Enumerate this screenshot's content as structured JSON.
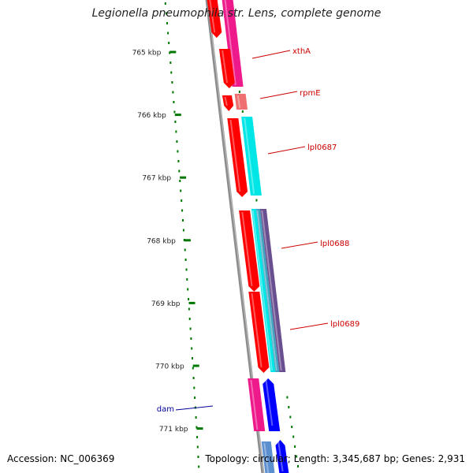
{
  "title": "Legionella pneumophila str. Lens, complete genome",
  "footer": {
    "accession": "Accession: NC_006369",
    "topology": "Topology: circular; Length: 3,345,687 bp; Genes: 2,931"
  },
  "axis_unit": "kbp",
  "ticks": [
    {
      "position_kbp": 765,
      "label": "765 kbp"
    },
    {
      "position_kbp": 766,
      "label": "766 kbp"
    },
    {
      "position_kbp": 767,
      "label": "767 kbp"
    },
    {
      "position_kbp": 768,
      "label": "768 kbp"
    },
    {
      "position_kbp": 769,
      "label": "769 kbp"
    },
    {
      "position_kbp": 770,
      "label": "770 kbp"
    },
    {
      "position_kbp": 771,
      "label": "771 kbp"
    }
  ],
  "gene_labels": [
    {
      "text": "xthA",
      "color": "#cc0000"
    },
    {
      "text": "rpmE",
      "color": "#cc0000"
    },
    {
      "text": "lpl0687",
      "color": "#cc0000"
    },
    {
      "text": "lpl0688",
      "color": "#cc0000"
    },
    {
      "text": "lpl0689",
      "color": "#cc0000"
    },
    {
      "text": "dam",
      "color": "#000099"
    }
  ],
  "colors": {
    "backbone": "#8c8c8c",
    "red_gene": "#ff0000",
    "magenta_gene": "#ee1a8c",
    "pink_gene": "#ee7070",
    "cyan_gene": "#00e6e6",
    "blue_gene": "#0000ff",
    "steelblue_gene": "#5b8fd0",
    "purple_band": "#6a4f90",
    "gc_dots": "#007700",
    "tick_color": "#007700"
  }
}
